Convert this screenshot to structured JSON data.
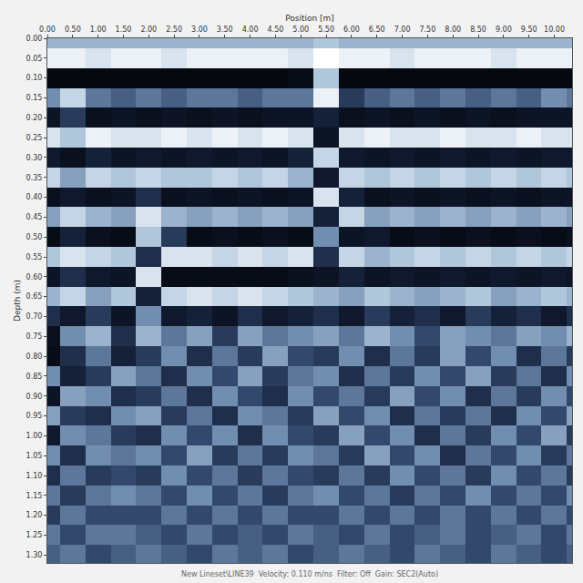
{
  "chart_data": {
    "type": "heatmap",
    "xlabel": "Position [m]",
    "ylabel": "Depth (m)",
    "footer": "New Lineset\\LINE39  Velocity: 0.110 m/ns  Filter: Off  Gain: SEC2(Auto)",
    "x": [
      0,
      0.5,
      1,
      1.5,
      2,
      2.5,
      3,
      3.5,
      4,
      4.5,
      5,
      5.5,
      6,
      6.5,
      7,
      7.5,
      8,
      8.5,
      9,
      9.5,
      10,
      10.5
    ],
    "y": [
      0,
      0.05,
      0.1,
      0.15,
      0.2,
      0.25,
      0.3,
      0.35,
      0.4,
      0.45,
      0.5,
      0.55,
      0.6,
      0.65,
      0.7,
      0.75,
      0.8,
      0.85,
      0.9,
      0.95,
      1,
      1.05,
      1.1,
      1.15,
      1.2,
      1.25,
      1.3
    ],
    "z": [
      [
        4,
        4,
        4,
        4,
        4,
        4,
        4,
        4,
        4,
        4,
        4,
        5,
        4,
        4,
        4,
        4,
        4,
        4,
        4,
        4,
        4,
        4
      ],
      [
        8,
        8,
        7,
        8,
        8,
        7,
        8,
        8,
        8,
        8,
        7,
        9,
        8,
        8,
        7,
        8,
        8,
        8,
        7,
        8,
        8,
        8
      ],
      [
        -9,
        -9,
        -9,
        -9,
        -9,
        -9,
        -9,
        -9,
        -9,
        -9,
        -8,
        5,
        -9,
        -9,
        -9,
        -9,
        -9,
        -9,
        -9,
        -9,
        -9,
        -9
      ],
      [
        2,
        6,
        1,
        0,
        1,
        0,
        1,
        1,
        0,
        1,
        1,
        8,
        -2,
        0,
        1,
        0,
        1,
        0,
        1,
        0,
        2,
        1
      ],
      [
        -6,
        -2,
        -7,
        -6,
        -7,
        -6,
        -7,
        -6,
        -7,
        -6,
        -6,
        -4,
        -7,
        -6,
        -7,
        -6,
        -7,
        -6,
        -7,
        -6,
        -6,
        -6
      ],
      [
        7,
        5,
        8,
        7,
        7,
        8,
        7,
        8,
        7,
        8,
        7,
        -6,
        7,
        8,
        7,
        7,
        8,
        7,
        7,
        8,
        7,
        7
      ],
      [
        -5,
        -7,
        -4,
        -6,
        -5,
        -6,
        -5,
        -6,
        -5,
        -6,
        -4,
        6,
        -5,
        -6,
        -5,
        -6,
        -5,
        -6,
        -5,
        -6,
        -5,
        -5
      ],
      [
        6,
        3,
        6,
        5,
        6,
        5,
        5,
        6,
        5,
        6,
        4,
        -5,
        6,
        5,
        6,
        5,
        6,
        5,
        6,
        5,
        6,
        5
      ],
      [
        -7,
        -5,
        -7,
        -6,
        -3,
        -7,
        -6,
        -7,
        -6,
        -7,
        -6,
        7,
        -4,
        -7,
        -6,
        -7,
        -6,
        -7,
        -6,
        -7,
        -6,
        -6
      ],
      [
        3,
        6,
        4,
        3,
        7,
        4,
        3,
        4,
        3,
        4,
        3,
        -4,
        6,
        3,
        4,
        3,
        4,
        3,
        4,
        3,
        4,
        3
      ],
      [
        -8,
        -4,
        -7,
        -8,
        5,
        -2,
        -8,
        -7,
        -8,
        -7,
        -8,
        2,
        -6,
        -5,
        -8,
        -7,
        -8,
        -7,
        -8,
        -7,
        -8,
        -7
      ],
      [
        5,
        7,
        6,
        5,
        -3,
        7,
        7,
        6,
        7,
        6,
        7,
        -3,
        6,
        4,
        5,
        6,
        5,
        6,
        5,
        6,
        5,
        6
      ],
      [
        -6,
        -3,
        -5,
        -6,
        7,
        -8,
        -8,
        -8,
        -8,
        -8,
        -7,
        -6,
        -4,
        -6,
        -5,
        -6,
        -5,
        -6,
        -5,
        -6,
        -5,
        -6
      ],
      [
        4,
        6,
        3,
        5,
        -4,
        6,
        7,
        6,
        7,
        6,
        5,
        4,
        3,
        5,
        4,
        3,
        4,
        5,
        3,
        4,
        5,
        4
      ],
      [
        -3,
        -5,
        -2,
        -6,
        2,
        -5,
        -4,
        -6,
        -3,
        -5,
        -4,
        -3,
        -5,
        -2,
        -4,
        -3,
        -5,
        -2,
        -4,
        -3,
        -5,
        -3
      ],
      [
        -7,
        2,
        4,
        -3,
        4,
        1,
        3,
        -2,
        3,
        1,
        2,
        3,
        1,
        4,
        2,
        -1,
        3,
        2,
        1,
        3,
        2,
        4
      ],
      [
        -8,
        -3,
        1,
        -4,
        -2,
        2,
        -3,
        1,
        -2,
        3,
        -1,
        -2,
        2,
        -3,
        1,
        -2,
        3,
        -1,
        2,
        -3,
        1,
        -2
      ],
      [
        2,
        -4,
        -2,
        3,
        1,
        -3,
        2,
        -1,
        3,
        -2,
        1,
        2,
        -3,
        1,
        -2,
        2,
        -1,
        3,
        -2,
        1,
        -3,
        2
      ],
      [
        -6,
        3,
        2,
        -3,
        -2,
        1,
        -3,
        2,
        -1,
        -3,
        2,
        -1,
        1,
        -2,
        3,
        -1,
        2,
        -3,
        1,
        -2,
        2,
        -1
      ],
      [
        3,
        -2,
        -3,
        2,
        3,
        -2,
        1,
        -3,
        2,
        1,
        -2,
        3,
        -1,
        2,
        -3,
        1,
        -2,
        1,
        -3,
        2,
        -1,
        3
      ],
      [
        -5,
        2,
        1,
        -2,
        -3,
        2,
        -1,
        2,
        -3,
        2,
        -1,
        -2,
        3,
        -1,
        2,
        -3,
        1,
        -2,
        2,
        -1,
        3,
        -2
      ],
      [
        2,
        -3,
        2,
        1,
        2,
        -1,
        3,
        -2,
        1,
        -2,
        2,
        1,
        -2,
        3,
        -1,
        2,
        -3,
        1,
        -1,
        2,
        -2,
        1
      ],
      [
        -3,
        1,
        -2,
        -1,
        -2,
        2,
        -1,
        1,
        -2,
        1,
        -1,
        -2,
        1,
        -2,
        2,
        -1,
        1,
        -2,
        2,
        -1,
        1,
        -2
      ],
      [
        1,
        -2,
        1,
        2,
        1,
        -1,
        2,
        -1,
        1,
        -2,
        1,
        2,
        -1,
        1,
        -2,
        1,
        -1,
        2,
        -1,
        1,
        -1,
        2
      ],
      [
        -2,
        1,
        -1,
        -1,
        -1,
        1,
        -1,
        1,
        -1,
        1,
        -1,
        -1,
        1,
        -1,
        1,
        -1,
        1,
        -1,
        1,
        -1,
        1,
        -1
      ],
      [
        1,
        -1,
        1,
        1,
        0,
        -1,
        1,
        -1,
        0,
        -1,
        1,
        0,
        -1,
        1,
        -1,
        0,
        1,
        -1,
        0,
        1,
        -1,
        1
      ],
      [
        0,
        1,
        -1,
        0,
        1,
        0,
        -1,
        1,
        0,
        1,
        -1,
        0,
        1,
        0,
        -1,
        1,
        0,
        -1,
        1,
        0,
        -1,
        0
      ]
    ],
    "zlim": [
      -9,
      9
    ],
    "xlim": [
      0,
      10.35
    ],
    "ylim": [
      1.32,
      0
    ],
    "xticks": [
      {
        "value": 0,
        "label": "0.00"
      },
      {
        "value": 0.5,
        "label": "0.50"
      },
      {
        "value": 1,
        "label": "1.00"
      },
      {
        "value": 1.5,
        "label": "1.50"
      },
      {
        "value": 2,
        "label": "2.00"
      },
      {
        "value": 2.5,
        "label": "2.50"
      },
      {
        "value": 3,
        "label": "3.00"
      },
      {
        "value": 3.5,
        "label": "3.50"
      },
      {
        "value": 4,
        "label": "4.00"
      },
      {
        "value": 4.5,
        "label": "4.50"
      },
      {
        "value": 5,
        "label": "5.00"
      },
      {
        "value": 5.5,
        "label": "5.50"
      },
      {
        "value": 6,
        "label": "6.00"
      },
      {
        "value": 6.5,
        "label": "6.50"
      },
      {
        "value": 7,
        "label": "7.00"
      },
      {
        "value": 7.5,
        "label": "7.50"
      },
      {
        "value": 8,
        "label": "8.00"
      },
      {
        "value": 8.5,
        "label": "8.50"
      },
      {
        "value": 9,
        "label": "9.00"
      },
      {
        "value": 9.5,
        "label": "9.50"
      },
      {
        "value": 10,
        "label": "10.00"
      }
    ],
    "yticks": [
      {
        "value": 0,
        "label": "0.00"
      },
      {
        "value": 0.05,
        "label": "0.05"
      },
      {
        "value": 0.1,
        "label": "0.10"
      },
      {
        "value": 0.15,
        "label": "0.15"
      },
      {
        "value": 0.2,
        "label": "0.20"
      },
      {
        "value": 0.25,
        "label": "0.25"
      },
      {
        "value": 0.3,
        "label": "0.30"
      },
      {
        "value": 0.35,
        "label": "0.35"
      },
      {
        "value": 0.4,
        "label": "0.40"
      },
      {
        "value": 0.45,
        "label": "0.45"
      },
      {
        "value": 0.5,
        "label": "0.50"
      },
      {
        "value": 0.55,
        "label": "0.55"
      },
      {
        "value": 0.6,
        "label": "0.60"
      },
      {
        "value": 0.65,
        "label": "0.65"
      },
      {
        "value": 0.7,
        "label": "0.70"
      },
      {
        "value": 0.75,
        "label": "0.75"
      },
      {
        "value": 0.8,
        "label": "0.80"
      },
      {
        "value": 0.85,
        "label": "0.85"
      },
      {
        "value": 0.9,
        "label": "0.90"
      },
      {
        "value": 0.95,
        "label": "0.95"
      },
      {
        "value": 1,
        "label": "1.00"
      },
      {
        "value": 1.05,
        "label": "1.05"
      },
      {
        "value": 1.1,
        "label": "1.10"
      },
      {
        "value": 1.15,
        "label": "1.15"
      },
      {
        "value": 1.2,
        "label": "1.20"
      },
      {
        "value": 1.25,
        "label": "1.25"
      },
      {
        "value": 1.3,
        "label": "1.30"
      }
    ],
    "grid": false
  }
}
